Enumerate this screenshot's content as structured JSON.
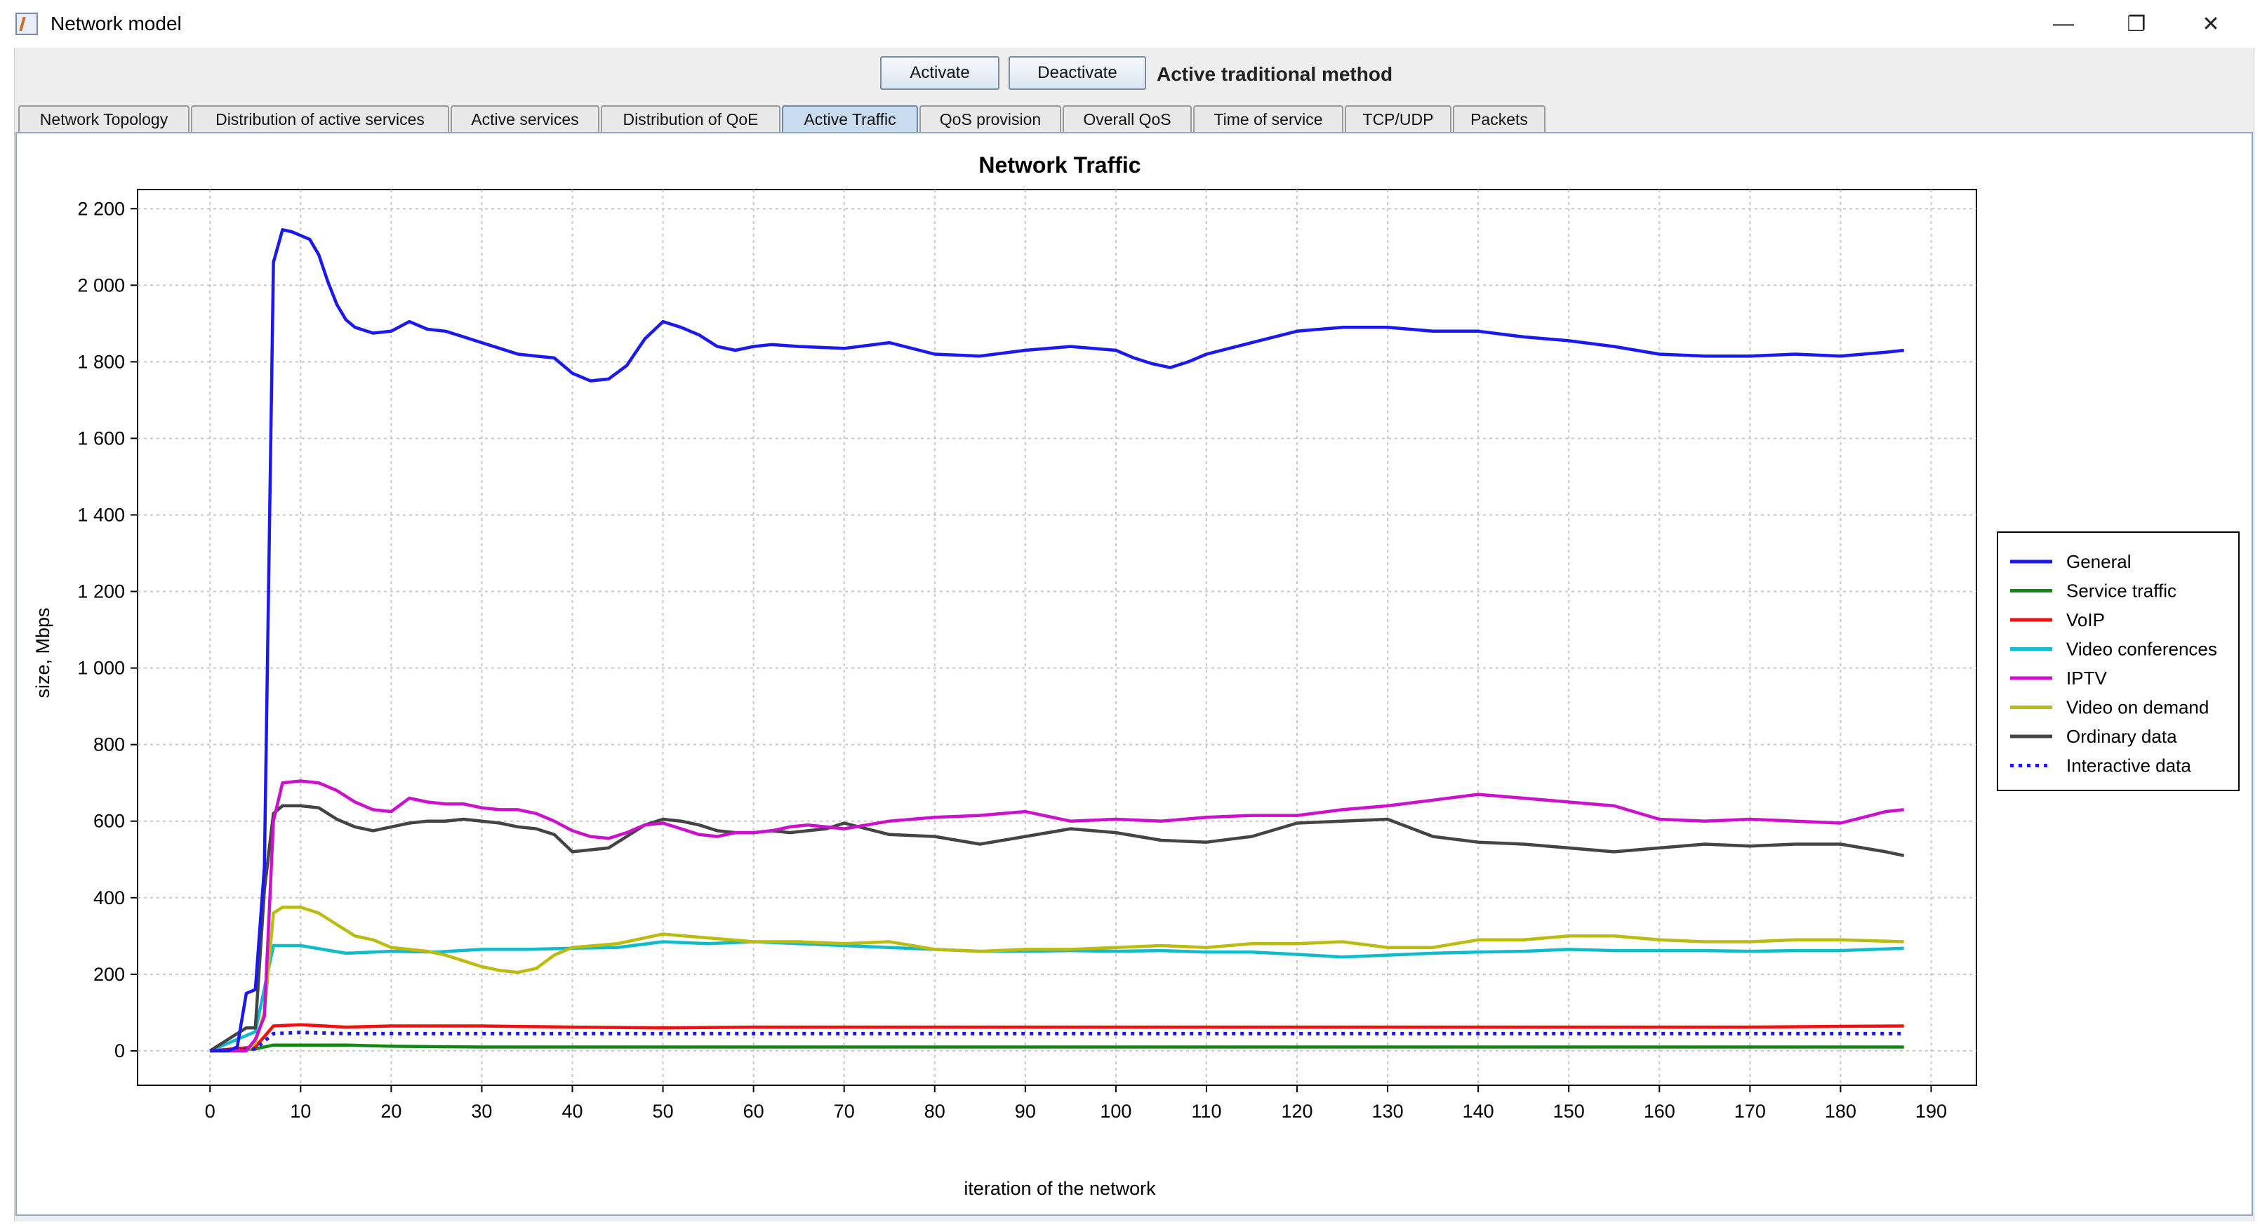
{
  "window": {
    "title": "Network model",
    "controls": {
      "minimize": "—",
      "maximize": "❐",
      "close": "✕"
    }
  },
  "toolbar": {
    "activate_label": "Activate",
    "deactivate_label": "Deactivate",
    "mode_label": "Active traditional method"
  },
  "tabs": [
    {
      "label": "Network Topology",
      "active": false
    },
    {
      "label": "Distribution of active services",
      "active": false
    },
    {
      "label": "Active services",
      "active": false
    },
    {
      "label": "Distribution of QoE",
      "active": false
    },
    {
      "label": "Active Traffic",
      "active": true
    },
    {
      "label": "QoS provision",
      "active": false
    },
    {
      "label": "Overall QoS",
      "active": false
    },
    {
      "label": "Time of service",
      "active": false
    },
    {
      "label": "TCP/UDP",
      "active": false
    },
    {
      "label": "Packets",
      "active": false
    }
  ],
  "chart_data": {
    "type": "line",
    "title": "Network Traffic",
    "xlabel": "iteration of the network",
    "ylabel": "size, Mbps",
    "xlim": [
      -8,
      195
    ],
    "ylim": [
      -90,
      2250
    ],
    "xticks": [
      0,
      10,
      20,
      30,
      40,
      50,
      60,
      70,
      80,
      90,
      100,
      110,
      120,
      130,
      140,
      150,
      160,
      170,
      180,
      190
    ],
    "yticks": [
      0,
      200,
      400,
      600,
      800,
      1000,
      1200,
      1400,
      1600,
      1800,
      2000,
      2200
    ],
    "ytick_labels": [
      "0",
      "200",
      "400",
      "600",
      "800",
      "1 000",
      "1 200",
      "1 400",
      "1 600",
      "1 800",
      "2 000",
      "2 200"
    ],
    "grid": true,
    "legend_position": "right",
    "series": [
      {
        "name": "General",
        "color": "#1a1aee",
        "dashed": false,
        "x": [
          0,
          2,
          3,
          4,
          5,
          6,
          7,
          8,
          9,
          10,
          11,
          12,
          13,
          14,
          15,
          16,
          18,
          20,
          22,
          24,
          26,
          28,
          30,
          32,
          34,
          36,
          38,
          40,
          42,
          44,
          46,
          48,
          50,
          52,
          54,
          56,
          58,
          60,
          62,
          65,
          70,
          75,
          80,
          85,
          90,
          95,
          100,
          102,
          104,
          106,
          108,
          110,
          115,
          120,
          125,
          130,
          135,
          140,
          145,
          150,
          155,
          160,
          165,
          170,
          175,
          180,
          185,
          187
        ],
        "y": [
          0,
          0,
          10,
          150,
          160,
          480,
          2060,
          2145,
          2140,
          2130,
          2120,
          2080,
          2010,
          1950,
          1910,
          1890,
          1875,
          1880,
          1905,
          1885,
          1880,
          1865,
          1850,
          1835,
          1820,
          1815,
          1810,
          1770,
          1750,
          1755,
          1790,
          1860,
          1905,
          1890,
          1870,
          1840,
          1830,
          1840,
          1845,
          1840,
          1835,
          1850,
          1820,
          1815,
          1830,
          1840,
          1830,
          1810,
          1795,
          1785,
          1800,
          1820,
          1850,
          1880,
          1890,
          1890,
          1880,
          1880,
          1865,
          1855,
          1840,
          1820,
          1815,
          1815,
          1820,
          1815,
          1825,
          1830
        ]
      },
      {
        "name": "Service traffic",
        "color": "#118811",
        "dashed": false,
        "x": [
          0,
          5,
          7,
          10,
          15,
          20,
          30,
          40,
          50,
          60,
          70,
          80,
          90,
          100,
          110,
          120,
          130,
          140,
          150,
          160,
          170,
          180,
          187
        ],
        "y": [
          0,
          5,
          15,
          15,
          15,
          12,
          10,
          10,
          10,
          10,
          10,
          10,
          10,
          10,
          10,
          10,
          10,
          10,
          10,
          10,
          10,
          10,
          10
        ]
      },
      {
        "name": "VoIP",
        "color": "#ee1111",
        "dashed": false,
        "x": [
          0,
          5,
          7,
          10,
          15,
          20,
          30,
          40,
          50,
          60,
          70,
          80,
          90,
          100,
          110,
          120,
          130,
          140,
          150,
          160,
          170,
          180,
          187
        ],
        "y": [
          0,
          10,
          65,
          68,
          62,
          65,
          65,
          62,
          60,
          62,
          62,
          62,
          62,
          62,
          62,
          62,
          62,
          62,
          62,
          62,
          62,
          64,
          65
        ]
      },
      {
        "name": "Video conferences",
        "color": "#11bbcc",
        "dashed": false,
        "x": [
          0,
          5,
          7,
          10,
          15,
          20,
          25,
          30,
          35,
          40,
          45,
          50,
          55,
          60,
          65,
          70,
          75,
          80,
          85,
          90,
          95,
          100,
          105,
          110,
          115,
          120,
          125,
          130,
          135,
          140,
          145,
          150,
          155,
          160,
          165,
          170,
          175,
          180,
          187
        ],
        "y": [
          0,
          50,
          275,
          275,
          255,
          260,
          258,
          265,
          265,
          268,
          270,
          285,
          280,
          285,
          280,
          275,
          270,
          265,
          260,
          260,
          262,
          260,
          262,
          258,
          258,
          252,
          245,
          250,
          255,
          258,
          260,
          265,
          262,
          262,
          262,
          260,
          262,
          262,
          268
        ]
      },
      {
        "name": "IPTV",
        "color": "#cc11cc",
        "dashed": false,
        "x": [
          0,
          4,
          5,
          6,
          7,
          8,
          10,
          12,
          14,
          16,
          18,
          20,
          22,
          24,
          26,
          28,
          30,
          32,
          34,
          36,
          38,
          40,
          42,
          44,
          46,
          48,
          50,
          52,
          54,
          56,
          58,
          60,
          62,
          64,
          66,
          68,
          70,
          75,
          80,
          85,
          90,
          95,
          100,
          105,
          110,
          115,
          120,
          125,
          130,
          135,
          140,
          145,
          150,
          155,
          160,
          165,
          170,
          175,
          180,
          185,
          187
        ],
        "y": [
          0,
          0,
          30,
          90,
          600,
          700,
          705,
          700,
          680,
          650,
          630,
          625,
          660,
          650,
          645,
          645,
          635,
          630,
          630,
          620,
          600,
          575,
          560,
          555,
          570,
          590,
          595,
          580,
          565,
          560,
          570,
          570,
          575,
          585,
          590,
          585,
          580,
          600,
          610,
          615,
          625,
          600,
          605,
          600,
          610,
          615,
          615,
          630,
          640,
          655,
          670,
          660,
          650,
          640,
          605,
          600,
          605,
          600,
          595,
          625,
          630
        ]
      },
      {
        "name": "Video on demand",
        "color": "#bbbb11",
        "dashed": false,
        "x": [
          0,
          4,
          5,
          6,
          7,
          8,
          10,
          12,
          14,
          16,
          18,
          20,
          22,
          24,
          26,
          28,
          30,
          32,
          34,
          36,
          38,
          40,
          45,
          50,
          55,
          60,
          65,
          70,
          75,
          80,
          85,
          90,
          95,
          100,
          105,
          110,
          115,
          120,
          125,
          130,
          135,
          140,
          145,
          150,
          155,
          160,
          165,
          170,
          175,
          180,
          187
        ],
        "y": [
          0,
          0,
          20,
          100,
          360,
          375,
          375,
          360,
          330,
          300,
          290,
          270,
          265,
          260,
          250,
          235,
          220,
          210,
          205,
          215,
          250,
          270,
          280,
          305,
          295,
          285,
          285,
          280,
          285,
          265,
          260,
          265,
          265,
          270,
          275,
          270,
          280,
          280,
          285,
          270,
          270,
          290,
          290,
          300,
          300,
          290,
          285,
          285,
          290,
          290,
          285
        ]
      },
      {
        "name": "Ordinary data",
        "color": "#444444",
        "dashed": false,
        "x": [
          0,
          4,
          5,
          6,
          7,
          8,
          10,
          12,
          14,
          16,
          18,
          20,
          22,
          24,
          26,
          28,
          30,
          32,
          34,
          36,
          38,
          40,
          42,
          44,
          46,
          48,
          50,
          52,
          54,
          56,
          58,
          60,
          62,
          64,
          66,
          68,
          70,
          75,
          80,
          85,
          90,
          95,
          100,
          105,
          110,
          115,
          120,
          125,
          130,
          135,
          140,
          145,
          150,
          155,
          160,
          165,
          170,
          175,
          180,
          185,
          187
        ],
        "y": [
          0,
          60,
          60,
          420,
          620,
          640,
          640,
          635,
          605,
          585,
          575,
          585,
          595,
          600,
          600,
          605,
          600,
          595,
          585,
          580,
          565,
          520,
          525,
          530,
          560,
          590,
          605,
          600,
          590,
          575,
          570,
          570,
          575,
          570,
          575,
          580,
          595,
          565,
          560,
          540,
          560,
          580,
          570,
          550,
          545,
          560,
          595,
          600,
          605,
          560,
          545,
          540,
          530,
          520,
          530,
          540,
          535,
          540,
          540,
          520,
          510
        ]
      },
      {
        "name": "Interactive data",
        "color": "#1a1aee",
        "dashed": true,
        "x": [
          0,
          5,
          7,
          10,
          15,
          20,
          30,
          40,
          50,
          60,
          70,
          80,
          90,
          100,
          110,
          120,
          130,
          140,
          150,
          160,
          170,
          180,
          187
        ],
        "y": [
          0,
          5,
          45,
          48,
          45,
          45,
          45,
          45,
          45,
          45,
          45,
          45,
          45,
          45,
          45,
          45,
          45,
          45,
          45,
          45,
          45,
          45,
          45
        ]
      }
    ]
  }
}
